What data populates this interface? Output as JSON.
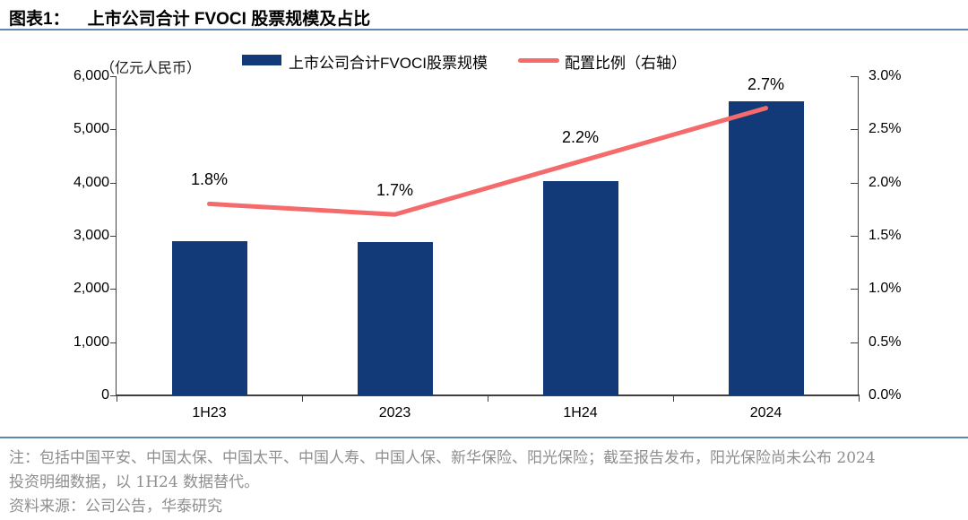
{
  "title": {
    "prefix": "图表1：",
    "text": "上市公司合计 FVOCI 股票规模及占比"
  },
  "chart_data": {
    "type": "bar+line",
    "categories": [
      "1H23",
      "2023",
      "1H24",
      "2024"
    ],
    "series": [
      {
        "name": "上市公司合计FVOCI股票规模",
        "type": "bar",
        "axis": "left",
        "values": [
          2900,
          2880,
          4030,
          5520
        ]
      },
      {
        "name": "配置比例（右轴）",
        "type": "line",
        "axis": "right",
        "values": [
          1.8,
          1.7,
          2.2,
          2.7
        ],
        "point_labels": [
          "1.8%",
          "1.7%",
          "2.2%",
          "2.7%"
        ]
      }
    ],
    "left_axis": {
      "unit": "（亿元人民币）",
      "min": 0,
      "max": 6000,
      "tick_labels": [
        "6,000",
        "5,000",
        "4,000",
        "3,000",
        "2,000",
        "1,000",
        "0"
      ]
    },
    "right_axis": {
      "min": 0,
      "max": 3,
      "tick_labels": [
        "3.0%",
        "2.5%",
        "2.0%",
        "1.5%",
        "1.0%",
        "0.5%",
        "0.0%"
      ]
    },
    "grid": false,
    "legend_position": "top"
  },
  "legend": {
    "bar_label": "上市公司合计FVOCI股票规模",
    "line_label": "配置比例（右轴）"
  },
  "footer": {
    "note_line1": "注：包括中国平安、中国太保、中国太平、中国人寿、中国人保、新华保险、阳光保险；截至报告发布，阳光保险尚未公布 2024",
    "note_line2": "投资明细数据，以 1H24 数据替代。",
    "source": "资料来源：公司公告，华泰研究"
  },
  "colors": {
    "bar": "#133a78",
    "line": "#f56a6a",
    "rule": "#5e86b0",
    "axis": "#3f3f3f",
    "note_text": "#8e8e8e"
  }
}
